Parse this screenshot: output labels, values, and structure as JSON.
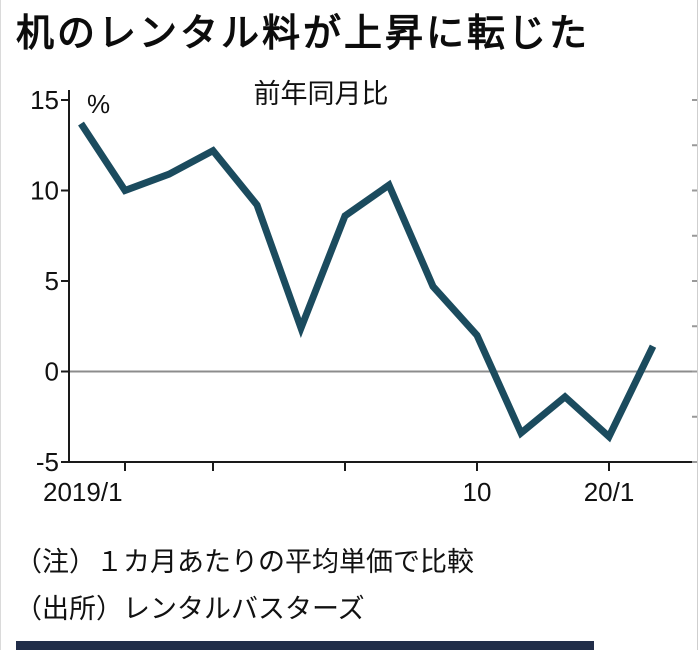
{
  "page": {
    "title": "机のレンタル料が上昇に転じた",
    "notes": [
      "（注）１カ月あたりの平均単価で比較",
      "（出所）レンタルバスターズ"
    ]
  },
  "chart_data": {
    "type": "line",
    "title": "机のレンタル料が上昇に転じた",
    "subtitle": "前年同月比",
    "unit": "%",
    "categories": [
      "2019/1",
      "2019/2",
      "2019/3",
      "2019/4",
      "2019/5",
      "2019/6",
      "2019/7",
      "2019/8",
      "2019/9",
      "2019/10",
      "2019/11",
      "2019/12",
      "2020/1",
      "2020/2"
    ],
    "values": [
      13.7,
      10.0,
      10.9,
      12.2,
      9.2,
      2.4,
      8.6,
      10.3,
      4.7,
      2.0,
      -3.4,
      -1.4,
      -3.6,
      1.4
    ],
    "ylim": [
      -5,
      15
    ],
    "yticks": [
      15,
      10,
      5,
      0,
      -5
    ],
    "x_tick_indices": [
      1,
      3,
      6,
      9,
      12
    ],
    "x_axis_labels": [
      {
        "index": 0,
        "label": "2019/1",
        "align": "start"
      },
      {
        "index": 9,
        "label": "10",
        "align": "middle"
      },
      {
        "index": 12,
        "label": "20/1",
        "align": "middle"
      }
    ],
    "zero_line": true,
    "grid": false,
    "legend": "none",
    "line_color": "#1b4b5e",
    "axis_color": "#1a1a1a",
    "zero_line_color": "#8c8c8c",
    "minor_tick_color": "#999999"
  }
}
